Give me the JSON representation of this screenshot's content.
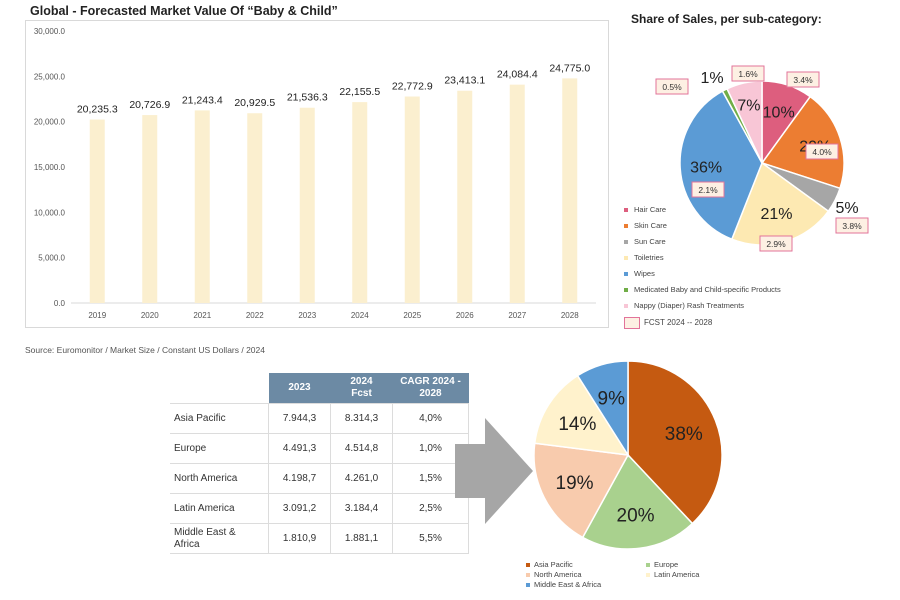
{
  "chart_data": [
    {
      "type": "bar",
      "title": "Global - Forecasted Market Value Of “Baby & Child”",
      "categories": [
        "2019",
        "2020",
        "2021",
        "2022",
        "2023",
        "2024",
        "2025",
        "2026",
        "2027",
        "2028"
      ],
      "values": [
        20235.3,
        20726.9,
        21243.4,
        20929.5,
        21536.3,
        22155.5,
        22772.9,
        23413.1,
        24084.4,
        24775.0
      ],
      "data_labels": [
        "20,235.3",
        "20,726.9",
        "21,243.4",
        "20,929.5",
        "21,536.3",
        "22,155.5",
        "22,772.9",
        "23,413.1",
        "24,084.4",
        "24,775.0"
      ],
      "ylim": [
        0,
        30000
      ],
      "yticks": [
        0,
        5000,
        10000,
        15000,
        20000,
        25000,
        30000
      ],
      "ytick_labels": [
        "0.0",
        "5,000.0",
        "10,000.0",
        "15,000.0",
        "20,000.0",
        "25,000.0",
        "30,000.0"
      ],
      "bar_color": "#fbefcf",
      "grid": false
    },
    {
      "type": "pie",
      "title": "Share of Sales, per sub-category:",
      "slices": [
        {
          "name": "Hair Care",
          "value": 10,
          "label": "10%",
          "fcst": "3.4%",
          "color": "#dd5e7e"
        },
        {
          "name": "Skin Care",
          "value": 20,
          "label": "20%",
          "fcst": "4.0%",
          "color": "#ec7d32"
        },
        {
          "name": "Sun Care",
          "value": 5,
          "label": "5%",
          "fcst": "3.8%",
          "color": "#a6a6a6"
        },
        {
          "name": "Toiletries",
          "value": 21,
          "label": "21%",
          "fcst": "2.9%",
          "color": "#fde9b2"
        },
        {
          "name": "Wipes",
          "value": 36,
          "label": "36%",
          "fcst": "2.1%",
          "color": "#5b9bd5"
        },
        {
          "name": "Medicated Baby and Child-specific Products",
          "value": 1,
          "label": "1%",
          "fcst": "0.5%",
          "color": "#70ad47"
        },
        {
          "name": "Nappy (Diaper) Rash Treatments",
          "value": 7,
          "label": "7%",
          "fcst": "1.6%",
          "color": "#f8c6d6"
        }
      ],
      "fcst_legend": "FCST 2024 -- 2028",
      "legend_position": "left"
    },
    {
      "type": "pie",
      "slices": [
        {
          "name": "Asia Pacific",
          "value": 38,
          "label": "38%",
          "color": "#c55a11"
        },
        {
          "name": "Europe",
          "value": 20,
          "label": "20%",
          "color": "#a9d18e"
        },
        {
          "name": "North America",
          "value": 19,
          "label": "19%",
          "color": "#f8cbad"
        },
        {
          "name": "Latin America",
          "value": 14,
          "label": "14%",
          "color": "#fff2cc"
        },
        {
          "name": "Middle East & Africa",
          "value": 9,
          "label": "9%",
          "color": "#5b9bd5"
        }
      ],
      "legend_position": "bottom"
    }
  ],
  "source": "Source: Euromonitor / Market Size / Constant US Dollars / 2024",
  "table": {
    "headers": [
      "",
      "2023",
      "2024\nFcst",
      "CAGR 2024 -\n2028"
    ],
    "rows": [
      [
        "Asia Pacific",
        "7.944,3",
        "8.314,3",
        "4,0%"
      ],
      [
        "Europe",
        "4.491,3",
        "4.514,8",
        "1,0%"
      ],
      [
        "North America",
        "4.198,7",
        "4.261,0",
        "1,5%"
      ],
      [
        "Latin America",
        "3.091,2",
        "3.184,4",
        "2,5%"
      ],
      [
        "Middle East &\nAfrica",
        "1.810,9",
        "1.881,1",
        "5,5%"
      ]
    ],
    "header_color": "#6c8aa4"
  },
  "arrow": {
    "color": "#a6a6a6",
    "icon": "right-arrow-icon"
  }
}
